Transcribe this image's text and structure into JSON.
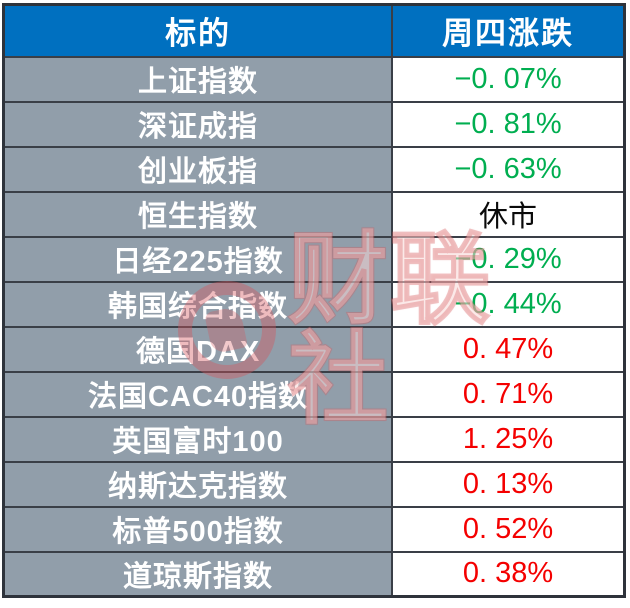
{
  "chart_data": {
    "type": "table",
    "title": "",
    "columns": [
      "标的",
      "周四涨跌"
    ],
    "rows": [
      {
        "name": "上证指数",
        "change": "−0. 07%",
        "direction": "down"
      },
      {
        "name": "深证成指",
        "change": "−0. 81%",
        "direction": "down"
      },
      {
        "name": "创业板指",
        "change": "−0. 63%",
        "direction": "down"
      },
      {
        "name": "恒生指数",
        "change": "休市",
        "direction": "closed"
      },
      {
        "name": "日经225指数",
        "change": "−0. 29%",
        "direction": "down"
      },
      {
        "name": "韩国综合指数",
        "change": "−0. 44%",
        "direction": "down"
      },
      {
        "name": "德国DAX",
        "change": "0. 47%",
        "direction": "up"
      },
      {
        "name": "法国CAC40指数",
        "change": "0. 71%",
        "direction": "up"
      },
      {
        "name": "英国富时100",
        "change": "1. 25%",
        "direction": "up"
      },
      {
        "name": "纳斯达克指数",
        "change": "0. 13%",
        "direction": "up"
      },
      {
        "name": "标普500指数",
        "change": "0. 52%",
        "direction": "up"
      },
      {
        "name": "道琼斯指数",
        "change": "0. 38%",
        "direction": "up"
      }
    ],
    "legend_note": "green = decline, red = gain, black = market closed"
  },
  "colors": {
    "up": "#F40000",
    "down": "#00AE50",
    "closed": "#0A0A0A",
    "header_bg": "#0070C0",
    "header_text": "#FFFFFF",
    "name_bg": "#919EAA",
    "name_text": "#FFFFFF",
    "value_bg": "#FFFFFF",
    "border": "#343942"
  },
  "watermark": {
    "text": "财联社"
  }
}
